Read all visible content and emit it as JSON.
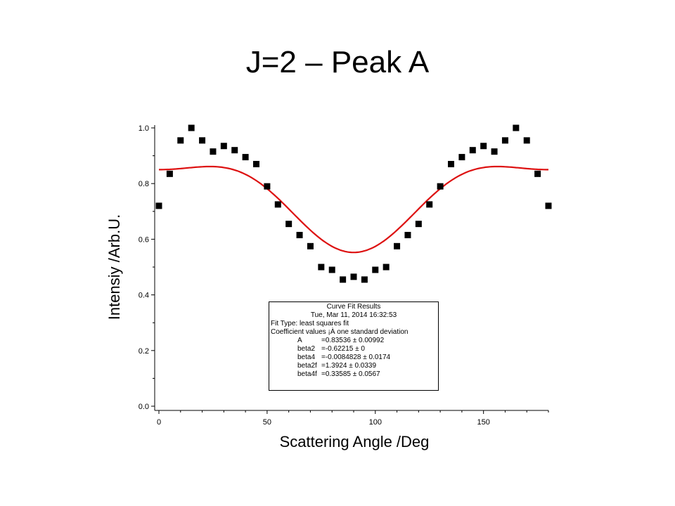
{
  "slide_title": "J=2 – Peak A",
  "chart_data": {
    "type": "scatter",
    "xlabel": "Scattering Angle /Deg",
    "ylabel": "Intensiy /Arb.U.",
    "xlim": [
      0,
      180
    ],
    "ylim": [
      0,
      1.0
    ],
    "x_ticks": [
      "0",
      "50",
      "100",
      "150"
    ],
    "y_ticks": [
      "0.0",
      "0.2",
      "0.4",
      "0.6",
      "0.8",
      "1.0"
    ],
    "grid": false,
    "series": [
      {
        "kind": "points",
        "marker": "square",
        "color": "#000000",
        "x": [
          0,
          5,
          10,
          15,
          20,
          25,
          30,
          35,
          40,
          45,
          50,
          55,
          60,
          65,
          70,
          75,
          80,
          85,
          90,
          95,
          100,
          105,
          110,
          115,
          120,
          125,
          130,
          135,
          140,
          145,
          150,
          155,
          160,
          165,
          170,
          175,
          180
        ],
        "y": [
          0.72,
          0.835,
          0.955,
          1.0,
          0.955,
          0.915,
          0.935,
          0.92,
          0.895,
          0.87,
          0.79,
          0.725,
          0.655,
          0.615,
          0.575,
          0.5,
          0.49,
          0.455,
          0.465,
          0.455,
          0.49,
          0.5,
          0.575,
          0.615,
          0.655,
          0.725,
          0.79,
          0.87,
          0.895,
          0.92,
          0.935,
          0.915,
          0.955,
          1.0,
          0.955,
          0.835,
          0.72
        ]
      },
      {
        "kind": "fit",
        "color": "#dd1111",
        "A": 0.83536,
        "beta2": -0.62215,
        "beta4": -0.0084828,
        "beta2f": 1.3924,
        "beta4f": 0.33585
      }
    ],
    "annotation": {
      "title": "Curve Fit Results",
      "date": "Tue, Mar 11, 2014 16:32:53",
      "fit_type": "Fit Type: least squares fit",
      "coef_line": "Coefficient values ¡À one standard deviation",
      "rows": [
        {
          "name": "A",
          "value": "=0.83536 ± 0.00992"
        },
        {
          "name": "beta2",
          "value": "=-0.62215 ± 0"
        },
        {
          "name": "beta4",
          "value": "=-0.0084828 ± 0.0174"
        },
        {
          "name": "beta2f",
          "value": "=1.3924 ± 0.0339"
        },
        {
          "name": "beta4f",
          "value": "=0.33585 ± 0.0567"
        }
      ]
    }
  }
}
